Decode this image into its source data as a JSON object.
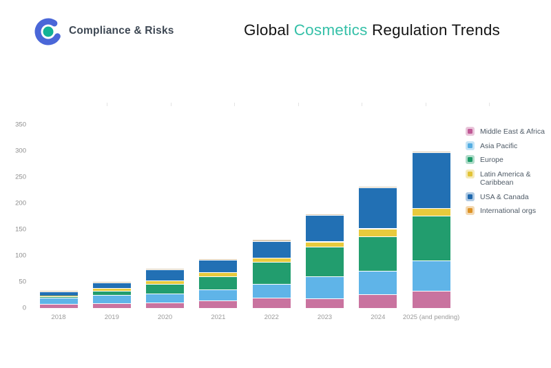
{
  "header": {
    "logo_text": "Compliance & Risks",
    "title_pre": "Global ",
    "title_highlight": "Cosmetics",
    "title_post": " Regulation Trends",
    "title_highlight_color": "#35c0a8",
    "logo_ring_color": "#4a67d8",
    "logo_dot_color": "#12b296"
  },
  "chart_data": {
    "type": "bar",
    "stacked": true,
    "title": "Global Cosmetics Regulation Trends",
    "categories": [
      "2018",
      "2019",
      "2020",
      "2021",
      "2022",
      "2023",
      "2024",
      "2025 (and pending)"
    ],
    "series": [
      {
        "name": "Middle East & Africa",
        "color": "#c05a96",
        "bar_color": "#c9739f",
        "values": [
          8,
          9,
          11,
          14,
          20,
          19,
          26,
          33
        ]
      },
      {
        "name": "Asia Pacific",
        "color": "#55aee3",
        "bar_color": "#5fb4e8",
        "values": [
          12,
          16,
          17,
          21,
          26,
          42,
          45,
          58
        ]
      },
      {
        "name": "Europe",
        "color": "#1d9c68",
        "bar_color": "#229d6e",
        "values": [
          3,
          8,
          18,
          25,
          42,
          56,
          66,
          85
        ]
      },
      {
        "name": "Latin America & Caribbean",
        "color": "#e2c336",
        "bar_color": "#e8ca3d",
        "values": [
          1,
          5,
          7,
          9,
          8,
          10,
          15,
          15
        ]
      },
      {
        "name": "USA & Canada",
        "color": "#1e68ae",
        "bar_color": "#2270b4",
        "values": [
          8,
          11,
          21,
          23,
          32,
          50,
          78,
          106
        ]
      },
      {
        "name": "International orgs",
        "color": "#dd9326",
        "bar_color": "#d9cab1",
        "values": [
          1,
          2,
          1,
          2,
          3,
          2,
          3,
          3
        ]
      }
    ],
    "totals": [
      33,
      51,
      75,
      94,
      131,
      179,
      233,
      300
    ],
    "ylim": [
      0,
      350
    ],
    "yticks": [
      0,
      50,
      100,
      150,
      200,
      250,
      300,
      350
    ],
    "xlabel": "",
    "ylabel": "",
    "grid": false,
    "legend_position": "right",
    "legend_labels": [
      "Middle East & Africa",
      "Asia Pacific",
      "Europe",
      "Latin America & Caribbean",
      "USA & Canada",
      "International orgs"
    ]
  }
}
